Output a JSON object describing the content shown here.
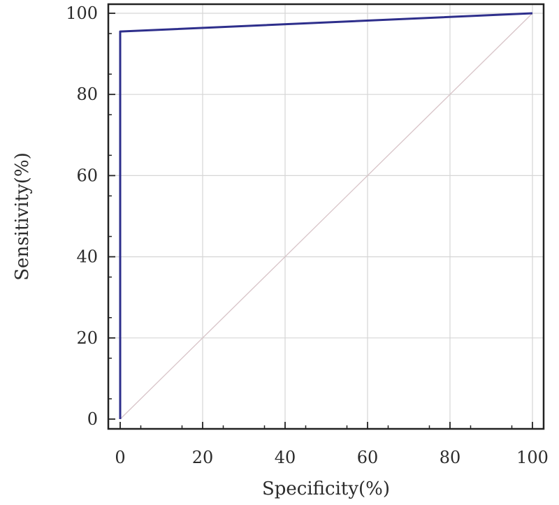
{
  "chart_data": {
    "type": "line",
    "title": "",
    "xlabel": "Specificity(%)",
    "ylabel": "Sensitivity(%)",
    "xlim": [
      0,
      100
    ],
    "ylim": [
      0,
      100
    ],
    "x_ticks": [
      0,
      20,
      40,
      60,
      80,
      100
    ],
    "y_ticks": [
      0,
      20,
      40,
      60,
      80,
      100
    ],
    "x_tick_labels": [
      "0",
      "20",
      "40",
      "60",
      "80",
      "100"
    ],
    "y_tick_labels": [
      "0",
      "20",
      "40",
      "60",
      "80",
      "100"
    ],
    "grid": true,
    "series": [
      {
        "color": "#2e2f8c",
        "points": [
          {
            "x": 0,
            "y": 0
          },
          {
            "x": 0,
            "y": 95.5
          },
          {
            "x": 100,
            "y": 100
          }
        ]
      }
    ],
    "reference_line": {
      "color": "#d8c4c8",
      "points": [
        {
          "x": 0,
          "y": 0
        },
        {
          "x": 100,
          "y": 100
        }
      ]
    }
  }
}
